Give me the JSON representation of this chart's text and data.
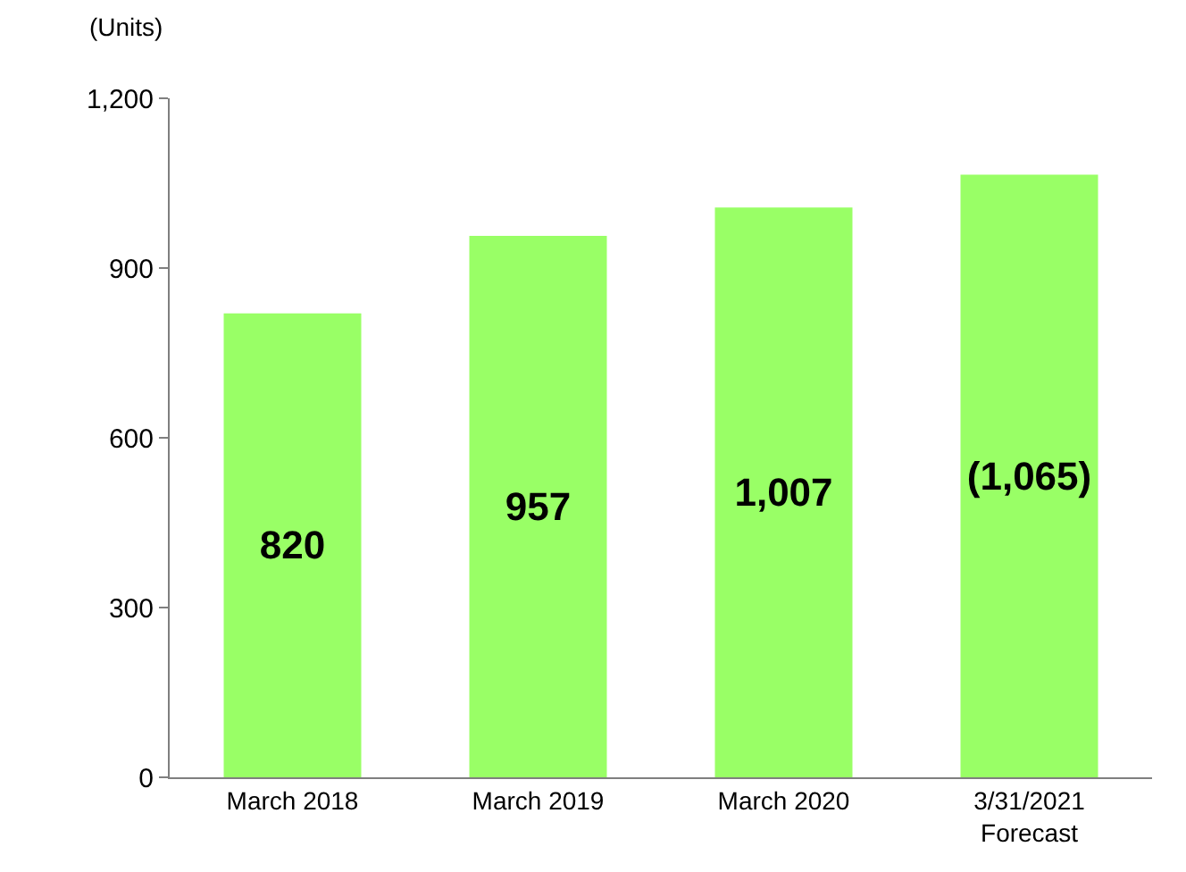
{
  "chart_data": {
    "type": "bar",
    "ylabel": "(Units)",
    "categories": [
      "March 2018",
      "March 2019",
      "March 2020",
      "3/31/2021\nForecast"
    ],
    "values": [
      820,
      957,
      1007,
      1065
    ],
    "value_labels": [
      "820",
      "957",
      "1,007",
      "(1,065)"
    ],
    "color": "#99ff66",
    "ylim": [
      0,
      1200
    ],
    "yticks": [
      {
        "value": 0,
        "label": "0"
      },
      {
        "value": 300,
        "label": "300"
      },
      {
        "value": 600,
        "label": "600"
      },
      {
        "value": 900,
        "label": "900"
      },
      {
        "value": 1200,
        "label": "1,200"
      }
    ],
    "grid": false
  }
}
